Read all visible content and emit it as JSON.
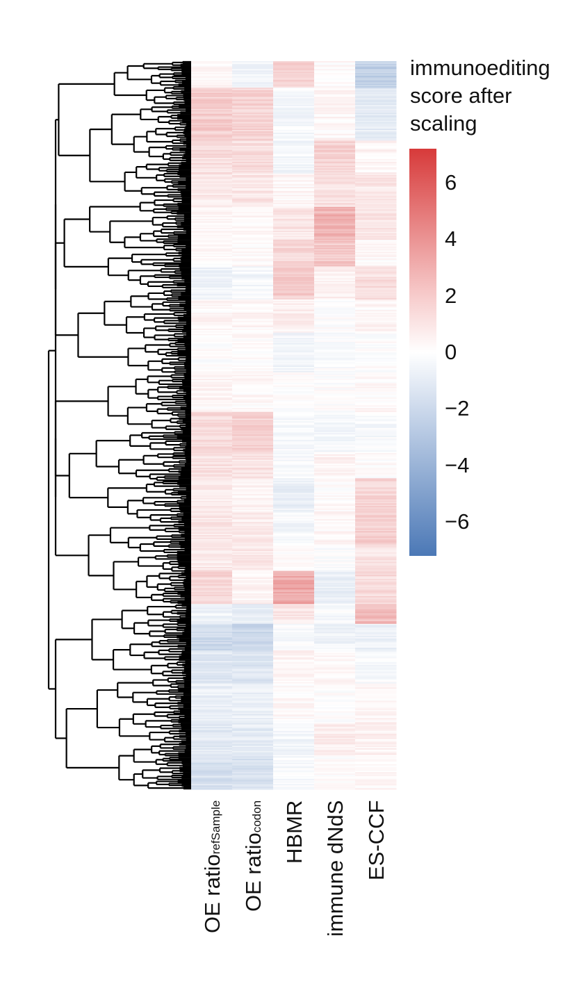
{
  "chart_data": {
    "type": "heatmap",
    "title": "",
    "columns": [
      {
        "main": "OE ratio",
        "sub": "refSample"
      },
      {
        "main": "OE ratio",
        "sub": "codon"
      },
      {
        "main": "HBMR",
        "sub": ""
      },
      {
        "main": "immune dNdS",
        "sub": ""
      },
      {
        "main": "ES-CCF",
        "sub": ""
      }
    ],
    "row_dendrogram": true,
    "legend": {
      "title": "immunoediting\nscore after\nscaling",
      "ticks": [
        "6",
        "4",
        "2",
        "0",
        "−2",
        "−4",
        "−6"
      ],
      "tick_values": [
        6,
        4,
        2,
        0,
        -2,
        -4,
        -6
      ],
      "range": [
        -7.2,
        7.2
      ],
      "colors": {
        "high": "#d73a3a",
        "mid": "#ffffff",
        "low": "#4b78b6"
      }
    },
    "row_blocks": [
      {
        "rows": 20,
        "values": [
          0.3,
          -0.5,
          1.5,
          0.2,
          -2.5
        ]
      },
      {
        "rows": 40,
        "values": [
          1.8,
          1.6,
          -0.4,
          0.3,
          -1.0
        ]
      },
      {
        "rows": 25,
        "values": [
          1.2,
          1.3,
          -0.5,
          1.6,
          0.4
        ]
      },
      {
        "rows": 25,
        "values": [
          0.8,
          0.9,
          0.3,
          1.0,
          0.9
        ]
      },
      {
        "rows": 25,
        "values": [
          0.4,
          0.3,
          0.9,
          2.8,
          1.0
        ]
      },
      {
        "rows": 20,
        "values": [
          0.2,
          0.2,
          1.4,
          2.0,
          0.2
        ]
      },
      {
        "rows": 25,
        "values": [
          -0.6,
          -0.4,
          1.8,
          0.5,
          1.2
        ]
      },
      {
        "rows": 25,
        "values": [
          0.3,
          0.3,
          0.6,
          0.0,
          0.3
        ]
      },
      {
        "rows": 30,
        "values": [
          0.0,
          0.1,
          -0.5,
          -0.2,
          0.0
        ]
      },
      {
        "rows": 30,
        "values": [
          0.3,
          0.2,
          0.0,
          0.0,
          0.2
        ]
      },
      {
        "rows": 30,
        "values": [
          1.3,
          1.6,
          -0.3,
          -0.4,
          -0.3
        ]
      },
      {
        "rows": 20,
        "values": [
          1.0,
          1.0,
          -0.2,
          0.4,
          0.1
        ]
      },
      {
        "rows": 25,
        "values": [
          0.6,
          0.4,
          -0.8,
          0.1,
          1.6
        ]
      },
      {
        "rows": 25,
        "values": [
          0.9,
          0.7,
          -0.4,
          0.3,
          1.8
        ]
      },
      {
        "rows": 20,
        "values": [
          0.8,
          0.9,
          0.1,
          -0.1,
          1.0
        ]
      },
      {
        "rows": 25,
        "values": [
          1.5,
          0.4,
          3.2,
          -0.8,
          1.3
        ]
      },
      {
        "rows": 15,
        "values": [
          -0.6,
          -0.9,
          0.9,
          -0.3,
          2.4
        ]
      },
      {
        "rows": 20,
        "values": [
          -2.0,
          -2.2,
          -0.3,
          -0.6,
          -0.8
        ]
      },
      {
        "rows": 25,
        "values": [
          -1.2,
          -1.3,
          0.4,
          0.2,
          -0.3
        ]
      },
      {
        "rows": 30,
        "values": [
          -0.8,
          -0.8,
          0.2,
          0.0,
          0.3
        ]
      },
      {
        "rows": 25,
        "values": [
          -1.1,
          -1.0,
          -0.5,
          0.7,
          0.5
        ]
      },
      {
        "rows": 25,
        "values": [
          -1.6,
          -1.5,
          -0.3,
          0.0,
          0.2
        ]
      }
    ]
  }
}
